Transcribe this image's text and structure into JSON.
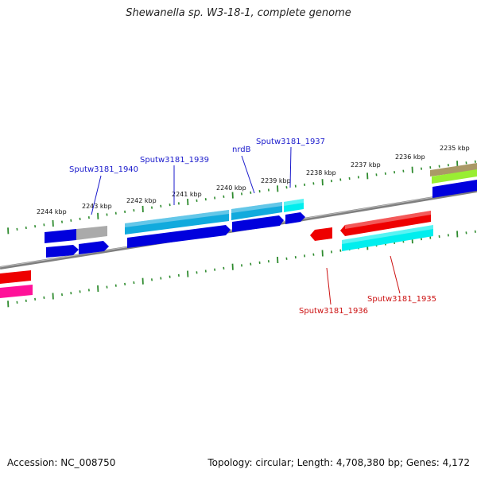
{
  "title": "Shewanella sp. W3-18-1, complete genome",
  "accession_label": "Accession: NC_008750",
  "summary_label": "Topology: circular; Length: 4,708,380 bp; Genes: 4,172",
  "colors": {
    "backbone": "#7f7f7f",
    "tick": "#2e8b2e",
    "label_forward": "#1a1acc",
    "label_reverse": "#cc1111",
    "gene_blue": "#0000dd",
    "gene_lightblue": "#11aadd",
    "gene_cyan": "#00eeee",
    "gene_red": "#ee0000",
    "gene_pink": "#ff1199",
    "gene_gray": "#aaaaaa",
    "gene_olive": "#aa9966",
    "gene_lime": "#99ee33"
  },
  "kbp_labels": [
    "2244 kbp",
    "2243 kbp",
    "2242 kbp",
    "2241 kbp",
    "2240 kbp",
    "2239 kbp",
    "2238 kbp",
    "2237 kbp",
    "2236 kbp",
    "2235 kbp"
  ],
  "gene_labels": {
    "sputw3181_1940": "Sputw3181_1940",
    "sputw3181_1939": "Sputw3181_1939",
    "nrdb": "nrdB",
    "sputw3181_1937": "Sputw3181_1937",
    "sputw3181_1936": "Sputw3181_1936",
    "sputw3181_1935": "Sputw3181_1935"
  }
}
